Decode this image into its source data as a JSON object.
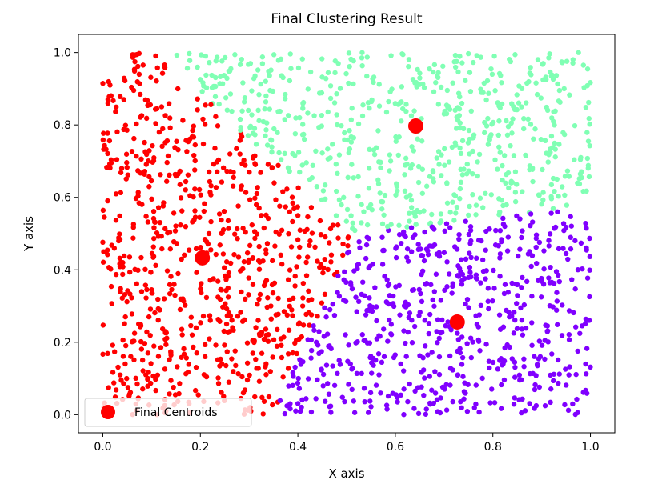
{
  "chart_data": {
    "type": "scatter",
    "title": "Final Clustering Result",
    "xlabel": "X axis",
    "ylabel": "Y axis",
    "xlim": [
      -0.05,
      1.05
    ],
    "ylim": [
      -0.05,
      1.05
    ],
    "x_ticks": [
      0.0,
      0.2,
      0.4,
      0.6,
      0.8,
      1.0
    ],
    "y_ticks": [
      0.0,
      0.2,
      0.4,
      0.6,
      0.8,
      1.0
    ],
    "x_tick_labels": [
      "0.0",
      "0.2",
      "0.4",
      "0.6",
      "0.8",
      "1.0"
    ],
    "y_tick_labels": [
      "0.0",
      "0.2",
      "0.4",
      "0.6",
      "0.8",
      "1.0"
    ],
    "grid": false,
    "legend": {
      "placement": "lower-left",
      "entries": [
        "Final Centroids"
      ]
    },
    "clusters": [
      {
        "color": "#ff0000",
        "region": "x + (1 - y) small: lower-left boundary to centroid (0.204, 0.433)",
        "centroid": [
          0.204,
          0.433
        ]
      },
      {
        "color": "#80ffb4",
        "region": "upper-right: nearest centroid (0.642, 0.797)",
        "centroid": [
          0.642,
          0.797
        ]
      },
      {
        "color": "#8000ff",
        "region": "lower-right: nearest centroid (0.727, 0.256)",
        "centroid": [
          0.727,
          0.256
        ]
      }
    ],
    "point_count": 2000,
    "x_range": [
      0.0,
      1.0
    ],
    "y_range": [
      0.0,
      1.0
    ],
    "centroids": {
      "name": "Final Centroids",
      "color": "#ff0000",
      "x": [
        0.204,
        0.642,
        0.727
      ],
      "y": [
        0.433,
        0.797,
        0.256
      ]
    }
  }
}
